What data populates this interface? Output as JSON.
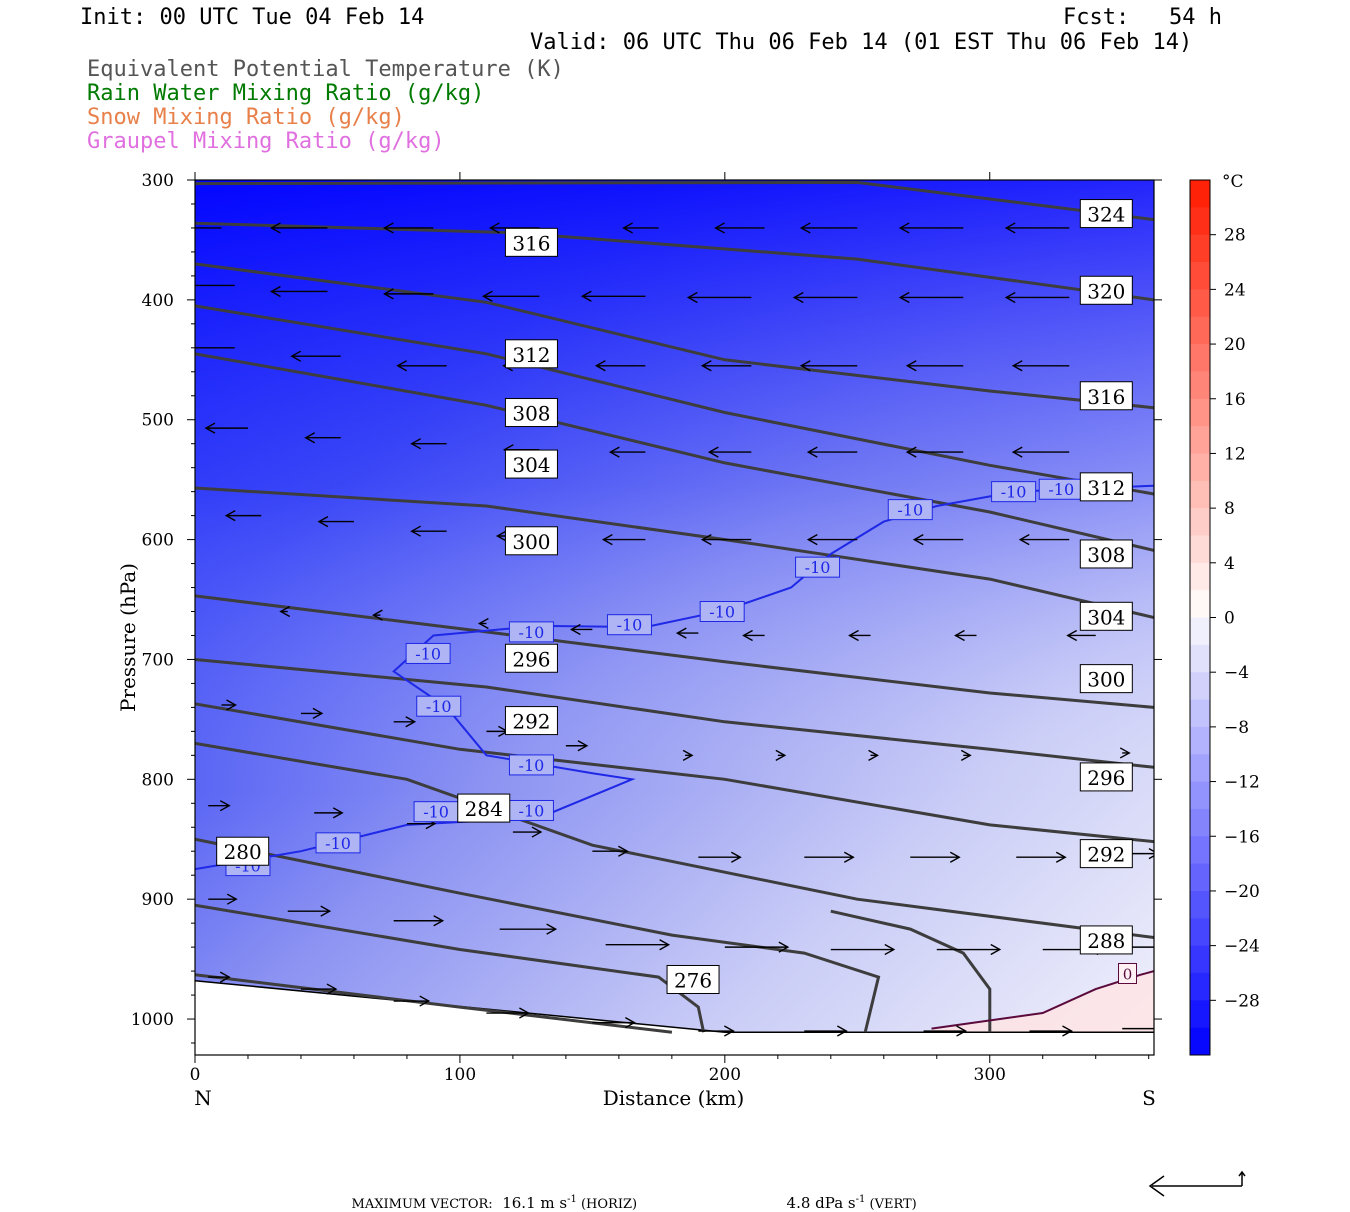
{
  "header": {
    "init": "Init: 00 UTC Tue 04 Feb 14",
    "fcst": "Fcst:   54 h",
    "valid": "Valid: 06 UTC Thu 06 Feb 14 (01 EST Thu 06 Feb 14)",
    "fields": [
      {
        "label": "Equivalent Potential Temperature (K)",
        "color": "#555555"
      },
      {
        "label": "Rain Water Mixing Ratio (g/kg)",
        "color": "#007a00"
      },
      {
        "label": "Snow Mixing Ratio (g/kg)",
        "color": "#e8804a"
      },
      {
        "label": "Graupel Mixing Ratio (g/kg)",
        "color": "#e070e0"
      }
    ]
  },
  "footer": {
    "max_vector_label": "MAXIMUM VECTOR:",
    "horiz": "16.1 m s",
    "horiz_exp": "-1",
    "horiz_suffix": " (HORIZ)",
    "vert": "4.8 dPa s",
    "vert_exp": "-1",
    "vert_suffix": " (VERT)"
  },
  "chart_data": {
    "type": "cross-section",
    "xlabel": "Distance (km)",
    "ylabel": "Pressure (hPa)",
    "xlim": [
      0,
      362
    ],
    "ylim": [
      1030,
      300
    ],
    "x_ticks": [
      0,
      100,
      200,
      300
    ],
    "y_ticks": [
      300,
      400,
      500,
      600,
      700,
      800,
      900,
      1000
    ],
    "left_end_label": "N",
    "right_end_label": "S",
    "colorbar": {
      "unit": "°C",
      "labels": [
        28,
        24,
        20,
        16,
        12,
        8,
        4,
        0,
        -4,
        -8,
        -12,
        -16,
        -20,
        -24,
        -28
      ],
      "cold_color": "#0000ff",
      "warm_color": "#ff1a00"
    },
    "theta_e_contours": [
      {
        "value": 324,
        "pts": [
          [
            0,
            303
          ],
          [
            250,
            302
          ],
          [
            362,
            333
          ]
        ]
      },
      {
        "value": 320,
        "pts": [
          [
            0,
            336
          ],
          [
            120,
            344
          ],
          [
            250,
            366
          ],
          [
            362,
            400
          ]
        ]
      },
      {
        "value": 316,
        "pts": [
          [
            0,
            370
          ],
          [
            110,
            402
          ],
          [
            200,
            450
          ],
          [
            300,
            476
          ],
          [
            362,
            490
          ]
        ]
      },
      {
        "value": 312,
        "pts": [
          [
            0,
            405
          ],
          [
            110,
            445
          ],
          [
            200,
            494
          ],
          [
            300,
            538
          ],
          [
            362,
            562
          ]
        ]
      },
      {
        "value": 308,
        "pts": [
          [
            0,
            445
          ],
          [
            110,
            488
          ],
          [
            200,
            536
          ],
          [
            300,
            577
          ],
          [
            362,
            609
          ]
        ]
      },
      {
        "value": 304,
        "pts": [
          [
            0,
            557
          ],
          [
            110,
            572
          ],
          [
            200,
            600
          ],
          [
            300,
            633
          ],
          [
            362,
            665
          ]
        ]
      },
      {
        "value": 300,
        "pts": [
          [
            0,
            647
          ],
          [
            110,
            677
          ],
          [
            200,
            702
          ],
          [
            300,
            728
          ],
          [
            362,
            740
          ]
        ]
      },
      {
        "value": 296,
        "pts": [
          [
            0,
            700
          ],
          [
            110,
            723
          ],
          [
            200,
            752
          ],
          [
            300,
            775
          ],
          [
            362,
            790
          ]
        ]
      },
      {
        "value": 292,
        "pts": [
          [
            0,
            737
          ],
          [
            100,
            775
          ],
          [
            200,
            800
          ],
          [
            300,
            838
          ],
          [
            362,
            852
          ]
        ]
      },
      {
        "value": 288,
        "pts": [
          [
            0,
            770
          ],
          [
            80,
            800
          ],
          [
            150,
            855
          ],
          [
            250,
            900
          ],
          [
            362,
            932
          ]
        ]
      },
      {
        "value": 284,
        "pts": [
          [
            0,
            850
          ],
          [
            100,
            895
          ],
          [
            180,
            930
          ],
          [
            230,
            945
          ],
          [
            258,
            965
          ],
          [
            253,
            1011
          ]
        ]
      },
      {
        "value": 280,
        "pts": [
          [
            0,
            905
          ],
          [
            100,
            942
          ],
          [
            175,
            965
          ],
          [
            190,
            990
          ],
          [
            192,
            1011
          ]
        ]
      },
      {
        "value": 276,
        "pts": [
          [
            0,
            963
          ],
          [
            100,
            990
          ],
          [
            180,
            1011
          ]
        ]
      },
      {
        "value": 276,
        "pts": [
          [
            300,
            1011
          ],
          [
            300,
            975
          ],
          [
            290,
            945
          ],
          [
            270,
            925
          ],
          [
            240,
            910
          ]
        ]
      }
    ],
    "theta_e_labels": [
      {
        "value": 324,
        "x": 344,
        "p": 328
      },
      {
        "value": 320,
        "x": 344,
        "p": 392
      },
      {
        "value": 316,
        "x": 127,
        "p": 352
      },
      {
        "value": 316,
        "x": 344,
        "p": 480
      },
      {
        "value": 312,
        "x": 127,
        "p": 445
      },
      {
        "value": 312,
        "x": 344,
        "p": 556
      },
      {
        "value": 308,
        "x": 127,
        "p": 494
      },
      {
        "value": 308,
        "x": 344,
        "p": 612
      },
      {
        "value": 304,
        "x": 127,
        "p": 537
      },
      {
        "value": 304,
        "x": 344,
        "p": 664
      },
      {
        "value": 300,
        "x": 127,
        "p": 601
      },
      {
        "value": 300,
        "x": 344,
        "p": 716
      },
      {
        "value": 296,
        "x": 127,
        "p": 699
      },
      {
        "value": 296,
        "x": 344,
        "p": 798
      },
      {
        "value": 292,
        "x": 127,
        "p": 751
      },
      {
        "value": 292,
        "x": 344,
        "p": 862
      },
      {
        "value": 288,
        "x": 344,
        "p": 934
      },
      {
        "value": 284,
        "x": 109,
        "p": 824
      },
      {
        "value": 280,
        "x": 18,
        "p": 860
      },
      {
        "value": 276,
        "x": 188,
        "p": 967
      }
    ],
    "isotherm_minus10": {
      "value": -10,
      "pts": [
        [
          0,
          875
        ],
        [
          40,
          860
        ],
        [
          80,
          838
        ],
        [
          130,
          832
        ],
        [
          165,
          800
        ],
        [
          150,
          795
        ],
        [
          110,
          780
        ],
        [
          95,
          740
        ],
        [
          75,
          710
        ],
        [
          90,
          680
        ],
        [
          130,
          672
        ],
        [
          170,
          673
        ],
        [
          200,
          659
        ],
        [
          225,
          640
        ],
        [
          240,
          612
        ],
        [
          260,
          585
        ],
        [
          280,
          572
        ],
        [
          310,
          560
        ],
        [
          362,
          555
        ]
      ],
      "labels": [
        [
          20,
          872
        ],
        [
          54,
          853
        ],
        [
          91,
          827
        ],
        [
          127,
          826
        ],
        [
          92,
          739
        ],
        [
          127,
          788
        ],
        [
          88,
          695
        ],
        [
          127,
          677
        ],
        [
          164,
          671
        ],
        [
          199,
          660
        ],
        [
          235,
          623
        ],
        [
          270,
          575
        ],
        [
          309,
          560
        ],
        [
          327,
          558
        ]
      ]
    },
    "isotherm_0": {
      "value": 0,
      "pts": [
        [
          278,
          1008
        ],
        [
          320,
          995
        ],
        [
          340,
          975
        ],
        [
          357,
          963
        ],
        [
          362,
          960
        ]
      ],
      "label": [
        352,
        962
      ]
    },
    "surface": {
      "pts": [
        [
          0,
          968
        ],
        [
          200,
          1011
        ],
        [
          362,
          1011
        ]
      ]
    },
    "wind_arrows": [
      [
        10,
        340,
        -10
      ],
      [
        50,
        340,
        -8
      ],
      [
        90,
        340,
        -7
      ],
      [
        130,
        340,
        -7
      ],
      [
        175,
        340,
        -5
      ],
      [
        215,
        340,
        -7
      ],
      [
        250,
        340,
        -8
      ],
      [
        290,
        340,
        -9
      ],
      [
        330,
        340,
        -9
      ],
      [
        15,
        388,
        -9
      ],
      [
        50,
        393,
        -8
      ],
      [
        90,
        395,
        -7
      ],
      [
        130,
        397,
        -8
      ],
      [
        170,
        397,
        -9
      ],
      [
        210,
        398,
        -9
      ],
      [
        250,
        398,
        -9
      ],
      [
        290,
        398,
        -9
      ],
      [
        330,
        398,
        -9
      ],
      [
        15,
        440,
        -8
      ],
      [
        55,
        447,
        -7
      ],
      [
        95,
        455,
        -7
      ],
      [
        135,
        455,
        -7
      ],
      [
        170,
        455,
        -7
      ],
      [
        210,
        455,
        -7
      ],
      [
        250,
        455,
        -8
      ],
      [
        290,
        455,
        -8
      ],
      [
        330,
        455,
        -8
      ],
      [
        20,
        507,
        -6
      ],
      [
        55,
        515,
        -5
      ],
      [
        95,
        520,
        -5
      ],
      [
        130,
        525,
        -5
      ],
      [
        170,
        527,
        -5
      ],
      [
        210,
        527,
        -6
      ],
      [
        250,
        527,
        -7
      ],
      [
        290,
        527,
        -8
      ],
      [
        330,
        527,
        -8
      ],
      [
        25,
        580,
        -5
      ],
      [
        60,
        585,
        -5
      ],
      [
        95,
        593,
        -5
      ],
      [
        130,
        597,
        -6
      ],
      [
        170,
        600,
        -6
      ],
      [
        210,
        600,
        -7
      ],
      [
        250,
        600,
        -7
      ],
      [
        290,
        600,
        -7
      ],
      [
        330,
        600,
        -7
      ],
      [
        35,
        660,
        -1
      ],
      [
        70,
        663,
        -1
      ],
      [
        110,
        670,
        -1
      ],
      [
        150,
        675,
        -3
      ],
      [
        190,
        678,
        -3
      ],
      [
        215,
        680,
        -3
      ],
      [
        255,
        680,
        -3
      ],
      [
        295,
        680,
        -3
      ],
      [
        340,
        680,
        -4
      ],
      [
        10,
        738,
        2
      ],
      [
        40,
        745,
        3
      ],
      [
        75,
        752,
        3
      ],
      [
        110,
        760,
        3
      ],
      [
        140,
        772,
        3
      ],
      [
        185,
        780,
        1
      ],
      [
        220,
        780,
        1
      ],
      [
        255,
        780,
        1
      ],
      [
        290,
        780,
        1
      ],
      [
        350,
        778,
        1
      ],
      [
        5,
        822,
        3
      ],
      [
        45,
        828,
        4
      ],
      [
        80,
        837,
        4
      ],
      [
        120,
        844,
        4
      ],
      [
        150,
        860,
        5
      ],
      [
        190,
        865,
        6
      ],
      [
        230,
        865,
        7
      ],
      [
        270,
        865,
        7
      ],
      [
        310,
        865,
        7
      ],
      [
        345,
        862,
        7
      ],
      [
        5,
        900,
        4
      ],
      [
        35,
        910,
        6
      ],
      [
        75,
        918,
        7
      ],
      [
        115,
        925,
        8
      ],
      [
        155,
        938,
        9
      ],
      [
        200,
        940,
        9
      ],
      [
        240,
        942,
        9
      ],
      [
        280,
        942,
        9
      ],
      [
        320,
        942,
        9
      ],
      [
        345,
        940,
        9
      ],
      [
        5,
        965,
        3
      ],
      [
        40,
        975,
        5
      ],
      [
        75,
        985,
        5
      ],
      [
        110,
        995,
        6
      ],
      [
        150,
        1003,
        6
      ],
      [
        190,
        1010,
        5
      ],
      [
        230,
        1010,
        6
      ],
      [
        275,
        1010,
        6
      ],
      [
        315,
        1010,
        6
      ],
      [
        350,
        1008,
        6
      ]
    ]
  }
}
